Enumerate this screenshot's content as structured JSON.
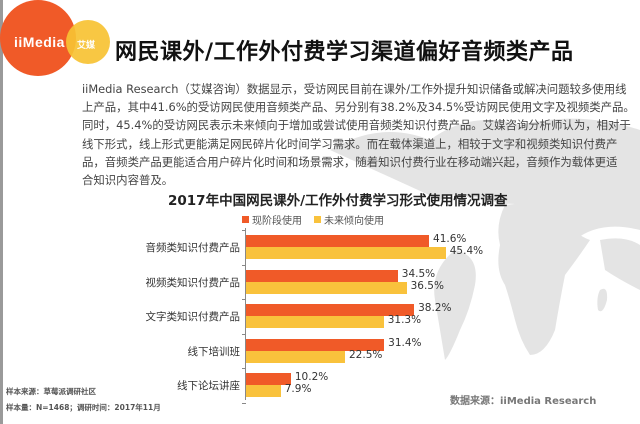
{
  "brand": {
    "logo_text": "iiMedia",
    "logo_cn": "艾媒",
    "colors": {
      "orange": "#F05A28",
      "yellow": "#F7C233",
      "bar_orange": "#F05A28",
      "bar_yellow": "#F9C23C"
    }
  },
  "header": {
    "title": "网民课外/工作外付费学习渠道偏好音频类产品"
  },
  "paragraph": {
    "lines": [
      "iiMedia Research（艾媒咨询）数据显示，受访网民目前在课外/工作外提升知识储备或解决问题较多使用线",
      "上产品，其中41.6%的受访网民使用音频类产品、另分别有38.2%及34.5%受访网民使用文字及视频类产品。",
      "同时，45.4%的受访网民表示未来倾向于增加或尝试使用音频类知识付费产品。艾媒咨询分析师认为，相对于",
      "线下形式，线上形式更能满足网民碎片化时间学习需求。而在载体渠道上，相较于文字和视频类知识付费产",
      "品，音频类产品更能适合用户碎片化时间和场景需求，随着知识付费行业在移动端兴起，音频作为载体更适",
      "合知识内容普及。"
    ]
  },
  "chart_data": {
    "type": "bar",
    "orientation": "horizontal",
    "title": "2017年中国网民课外/工作外付费学习形式使用情况调查",
    "categories": [
      "音频类知识付费产品",
      "视频类知识付费产品",
      "文字类知识付费产品",
      "线下培训班",
      "线下论坛讲座"
    ],
    "series": [
      {
        "name": "现阶段使用",
        "color": "#F05A28",
        "values": [
          41.6,
          34.5,
          38.2,
          31.4,
          10.2
        ],
        "labels": [
          "41.6%",
          "34.5%",
          "38.2%",
          "31.4%",
          "10.2%"
        ]
      },
      {
        "name": "未来倾向使用",
        "color": "#F9C23C",
        "values": [
          45.4,
          36.5,
          31.3,
          22.5,
          7.9
        ],
        "labels": [
          "45.4%",
          "36.5%",
          "31.3%",
          "22.5%",
          "7.9%"
        ]
      }
    ],
    "legend_position": "top",
    "grid": false,
    "xlabel": "",
    "ylabel": "",
    "unit": "%"
  },
  "footer": {
    "sample_source": "样本来源：草莓派调研社区",
    "sample_size": "样本量：N=1468；调研时间：2017年11月",
    "data_source": "数据来源：iiMedia Research"
  }
}
